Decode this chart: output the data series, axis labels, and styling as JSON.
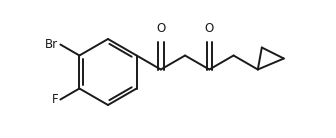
{
  "background_color": "#ffffff",
  "line_color": "#1a1a1a",
  "line_width": 1.4,
  "font_size": 8.5,
  "label_color": "#1a1a1a",
  "Br_label": "Br",
  "F_label": "F",
  "O1_label": "O",
  "O2_label": "O"
}
